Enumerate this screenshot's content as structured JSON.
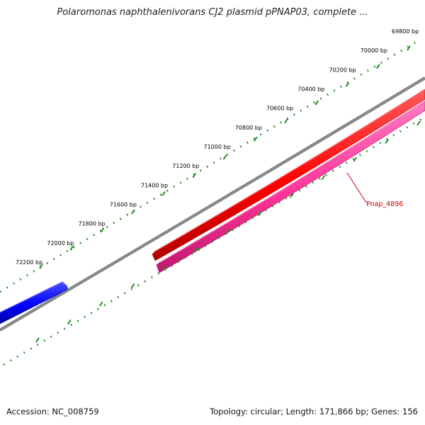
{
  "title": "Polaromonas naphthalenivorans CJ2 plasmid pPNAP03, complete ...",
  "footer": {
    "accession": "Accession: NC_008759",
    "summary": "Topology: circular; Length: 171,866 bp; Genes: 156"
  },
  "scale": {
    "labels": [
      "69800 bp",
      "70000 bp",
      "70200 bp",
      "70400 bp",
      "70600 bp",
      "70800 bp",
      "71000 bp",
      "71200 bp",
      "71400 bp",
      "71600 bp",
      "71800 bp",
      "72000 bp",
      "72200 bp"
    ]
  },
  "genes": [
    {
      "name": "Pnap_4896",
      "color": "#ff0000",
      "labeled": true
    },
    {
      "name": "",
      "color": "#ff3399",
      "labeled": false
    },
    {
      "name": "",
      "color": "#0000ff",
      "labeled": false
    }
  ],
  "colors": {
    "ticks": "#228b22",
    "backbone": "#808080",
    "gene_label": "#cc0000"
  }
}
